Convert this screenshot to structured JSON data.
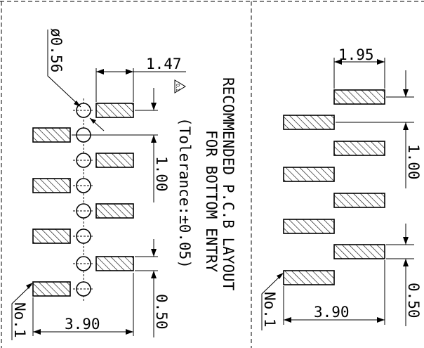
{
  "left_panel": {
    "hole_dia": "ø0.56",
    "pad_width": "1.47",
    "tolerance_symbol": "△",
    "tolerance_symbol_text": "0.1",
    "pitch": "1.00",
    "pad_height": "0.50",
    "row_spacing": "3.90",
    "pin1": "No.1",
    "title_line1": "RECOMMENDED P.C.B LAYOUT",
    "title_line2": "FOR BOTTOM ENTRY",
    "title_line3": "(Tolerance:±0.05)"
  },
  "right_panel": {
    "pad_width": "1.95",
    "pitch": "1.00",
    "pad_height": "0.50",
    "row_spacing": "3.90",
    "pin1": "No.1"
  }
}
